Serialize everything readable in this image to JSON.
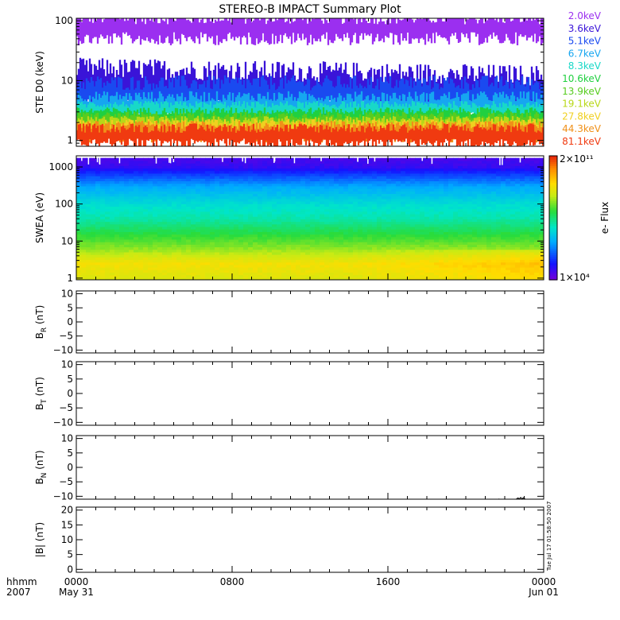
{
  "title": "STEREO-B IMPACT Summary Plot",
  "side_stamp": "Tue Jul 17 01:58:50 2007",
  "time_axis": {
    "row1_label": "hhmm",
    "row2_label": "2007",
    "ticks": [
      {
        "t": 0,
        "label": "0000",
        "sub": "May 31"
      },
      {
        "t": 8,
        "label": "0800",
        "sub": ""
      },
      {
        "t": 16,
        "label": "1600",
        "sub": ""
      },
      {
        "t": 24,
        "label": "0000",
        "sub": "Jun 01"
      }
    ],
    "range_hours": [
      0,
      24
    ]
  },
  "chart_data": [
    {
      "type": "line",
      "panel": "ste",
      "ylabel": "STE D0 (keV)",
      "yscale": "log",
      "ylim": [
        0.8,
        110
      ],
      "yticks": [
        {
          "v": 1,
          "label": "1"
        },
        {
          "v": 10,
          "label": "10"
        },
        {
          "v": 100,
          "label": "100"
        }
      ],
      "series": [
        {
          "name": "2.0keV",
          "color": "#9b2ff0",
          "level": 75,
          "spread": 0.22
        },
        {
          "name": "3.6keV",
          "color": "#3a14d8",
          "level": 8.5,
          "spread": 0.35
        },
        {
          "name": "5.1keV",
          "color": "#1a4af0",
          "level": 5.8,
          "spread": 0.25
        },
        {
          "name": "6.7keV",
          "color": "#16a6f0",
          "level": 3.9,
          "spread": 0.18
        },
        {
          "name": "8.3keV",
          "color": "#18d8c8",
          "level": 3.2,
          "spread": 0.12
        },
        {
          "name": "10.6keV",
          "color": "#20d040",
          "level": 2.5,
          "spread": 0.12
        },
        {
          "name": "13.9keV",
          "color": "#58cc20",
          "level": 2.1,
          "spread": 0.12
        },
        {
          "name": "19.1keV",
          "color": "#b8d818",
          "level": 1.8,
          "spread": 0.12
        },
        {
          "name": "27.8keV",
          "color": "#f0d020",
          "level": 1.6,
          "spread": 0.12
        },
        {
          "name": "44.3keV",
          "color": "#f09018",
          "level": 1.4,
          "spread": 0.14
        },
        {
          "name": "81.1keV",
          "color": "#f03a10",
          "level": 1.2,
          "spread": 0.16
        }
      ]
    },
    {
      "type": "heatmap",
      "panel": "swea",
      "ylabel": "SWEA (eV)",
      "yscale": "log",
      "ylim": [
        0.9,
        2000
      ],
      "yticks": [
        {
          "v": 1,
          "label": "1"
        },
        {
          "v": 10,
          "label": "10"
        },
        {
          "v": 100,
          "label": "100"
        },
        {
          "v": 1000,
          "label": "1000"
        }
      ],
      "colorbar": {
        "label": "e- Flux",
        "min": 10000,
        "max": 200000000000,
        "min_label": "1×10⁴",
        "max_label": "2×10¹¹"
      },
      "energy_profile": [
        {
          "e": 1,
          "c": 0.72
        },
        {
          "e": 2.5,
          "c": 0.76
        },
        {
          "e": 6,
          "c": 0.64
        },
        {
          "e": 15,
          "c": 0.55
        },
        {
          "e": 40,
          "c": 0.45
        },
        {
          "e": 100,
          "c": 0.4
        },
        {
          "e": 300,
          "c": 0.3
        },
        {
          "e": 600,
          "c": 0.18
        },
        {
          "e": 1000,
          "c": 0.08
        },
        {
          "e": 2000,
          "c": 0.04
        }
      ]
    },
    {
      "type": "line",
      "panel": "br",
      "ylabel": "B_R (nT)",
      "ylabel_main": "B",
      "ylabel_sub": "R",
      "ylabel_unit": " (nT)",
      "ylim": [
        -11,
        11
      ],
      "yticks": [
        {
          "v": 10,
          "label": "10"
        },
        {
          "v": 5,
          "label": "5"
        },
        {
          "v": 0,
          "label": "0"
        },
        {
          "v": -5,
          "label": "−5"
        },
        {
          "v": -10,
          "label": "−10"
        }
      ],
      "series": []
    },
    {
      "type": "line",
      "panel": "bt",
      "ylabel": "B_T (nT)",
      "ylabel_main": "B",
      "ylabel_sub": "T",
      "ylabel_unit": " (nT)",
      "ylim": [
        -11,
        11
      ],
      "yticks": [
        {
          "v": 10,
          "label": "10"
        },
        {
          "v": 5,
          "label": "5"
        },
        {
          "v": 0,
          "label": "0"
        },
        {
          "v": -5,
          "label": "−5"
        },
        {
          "v": -10,
          "label": "−10"
        }
      ],
      "series": []
    },
    {
      "type": "line",
      "panel": "bn",
      "ylabel": "B_N (nT)",
      "ylabel_main": "B",
      "ylabel_sub": "N",
      "ylabel_unit": " (nT)",
      "ylim": [
        -11,
        11
      ],
      "yticks": [
        {
          "v": 10,
          "label": "10"
        },
        {
          "v": 5,
          "label": "5"
        },
        {
          "v": 0,
          "label": "0"
        },
        {
          "v": -5,
          "label": "−5"
        },
        {
          "v": -10,
          "label": "−10"
        }
      ],
      "series": [
        {
          "color": "#000000",
          "x": [
            21.7,
            21.72
          ],
          "y": [
            -10.9,
            -10.9
          ]
        },
        {
          "color": "#000000",
          "x": [
            22.6,
            22.68,
            22.75,
            22.82,
            22.88,
            22.95,
            23.0,
            23.05
          ],
          "y": [
            -10.9,
            -10.6,
            -10.9,
            -10.4,
            -10.95,
            -10.5,
            -10.9,
            -10.8
          ]
        }
      ]
    },
    {
      "type": "line",
      "panel": "bmag",
      "ylabel": "|B| (nT)",
      "ylabel_main": "|B|",
      "ylabel_sub": "",
      "ylabel_unit": " (nT)",
      "ylim": [
        -1,
        21
      ],
      "yticks": [
        {
          "v": 20,
          "label": "20"
        },
        {
          "v": 15,
          "label": "15"
        },
        {
          "v": 10,
          "label": "10"
        },
        {
          "v": 5,
          "label": "5"
        },
        {
          "v": 0,
          "label": "0"
        }
      ],
      "series": []
    }
  ]
}
